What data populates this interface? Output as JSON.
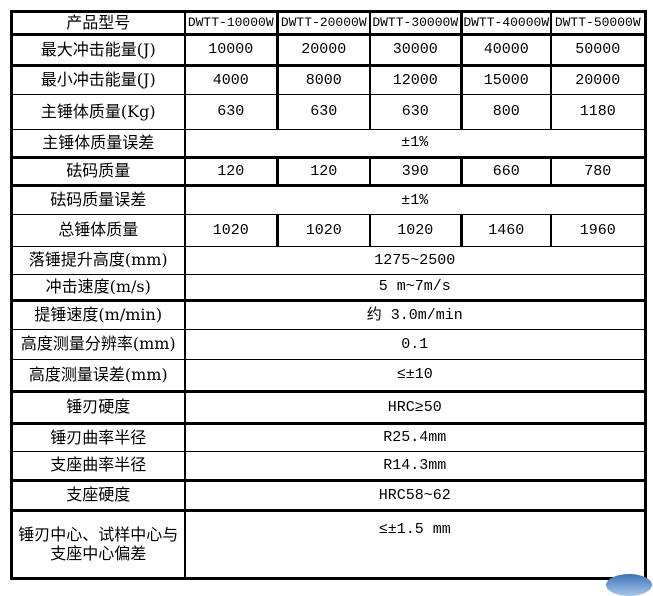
{
  "table": {
    "header": {
      "label": "产品型号",
      "models": [
        "DWTT-10000W",
        "DWTT-20000W",
        "DWTT-30000W",
        "DWTT-40000W",
        "DWTT-50000W"
      ]
    },
    "rows": [
      {
        "label": "最大冲击能量(J)",
        "values": [
          "10000",
          "20000",
          "30000",
          "40000",
          "50000"
        ]
      },
      {
        "label": "最小冲击能量(J)",
        "values": [
          "4000",
          "8000",
          "12000",
          "15000",
          "20000"
        ]
      },
      {
        "label": "主锤体质量(Kg)",
        "values": [
          "630",
          "630",
          "630",
          "800",
          "1180"
        ]
      },
      {
        "label": "主锤体质量误差",
        "merged": "±1%"
      },
      {
        "label": "砝码质量",
        "values": [
          "120",
          "120",
          "390",
          "660",
          "780"
        ]
      },
      {
        "label": "砝码质量误差",
        "merged": "±1%"
      },
      {
        "label": "总锤体质量",
        "values": [
          "1020",
          "1020",
          "1020",
          "1460",
          "1960"
        ]
      },
      {
        "label": "落锤提升高度(mm)",
        "merged": "1275~2500"
      },
      {
        "label": "冲击速度(m/s)",
        "merged": "5 m~7m/s"
      },
      {
        "label": "提锤速度(m/min)",
        "merged": "约 3.0m/min"
      },
      {
        "label": "高度测量分辨率(mm)",
        "merged": "0.1"
      },
      {
        "label": "高度测量误差(mm)",
        "merged": "≤±10"
      },
      {
        "label": "锤刃硬度",
        "merged": "HRC≥50"
      },
      {
        "label": "锤刃曲率半径",
        "merged": "R25.4mm"
      },
      {
        "label": "支座曲率半径",
        "merged": "R14.3mm"
      },
      {
        "label": "支座硬度",
        "merged": "HRC58~62"
      },
      {
        "label": "锤刃中心、试样中心与支座中心偏差",
        "merged": "≤±1.5 mm"
      }
    ]
  },
  "colors": {
    "grid": "#000000",
    "background": "#ffffff",
    "logo_fragment_blue": "#3a72b5"
  }
}
